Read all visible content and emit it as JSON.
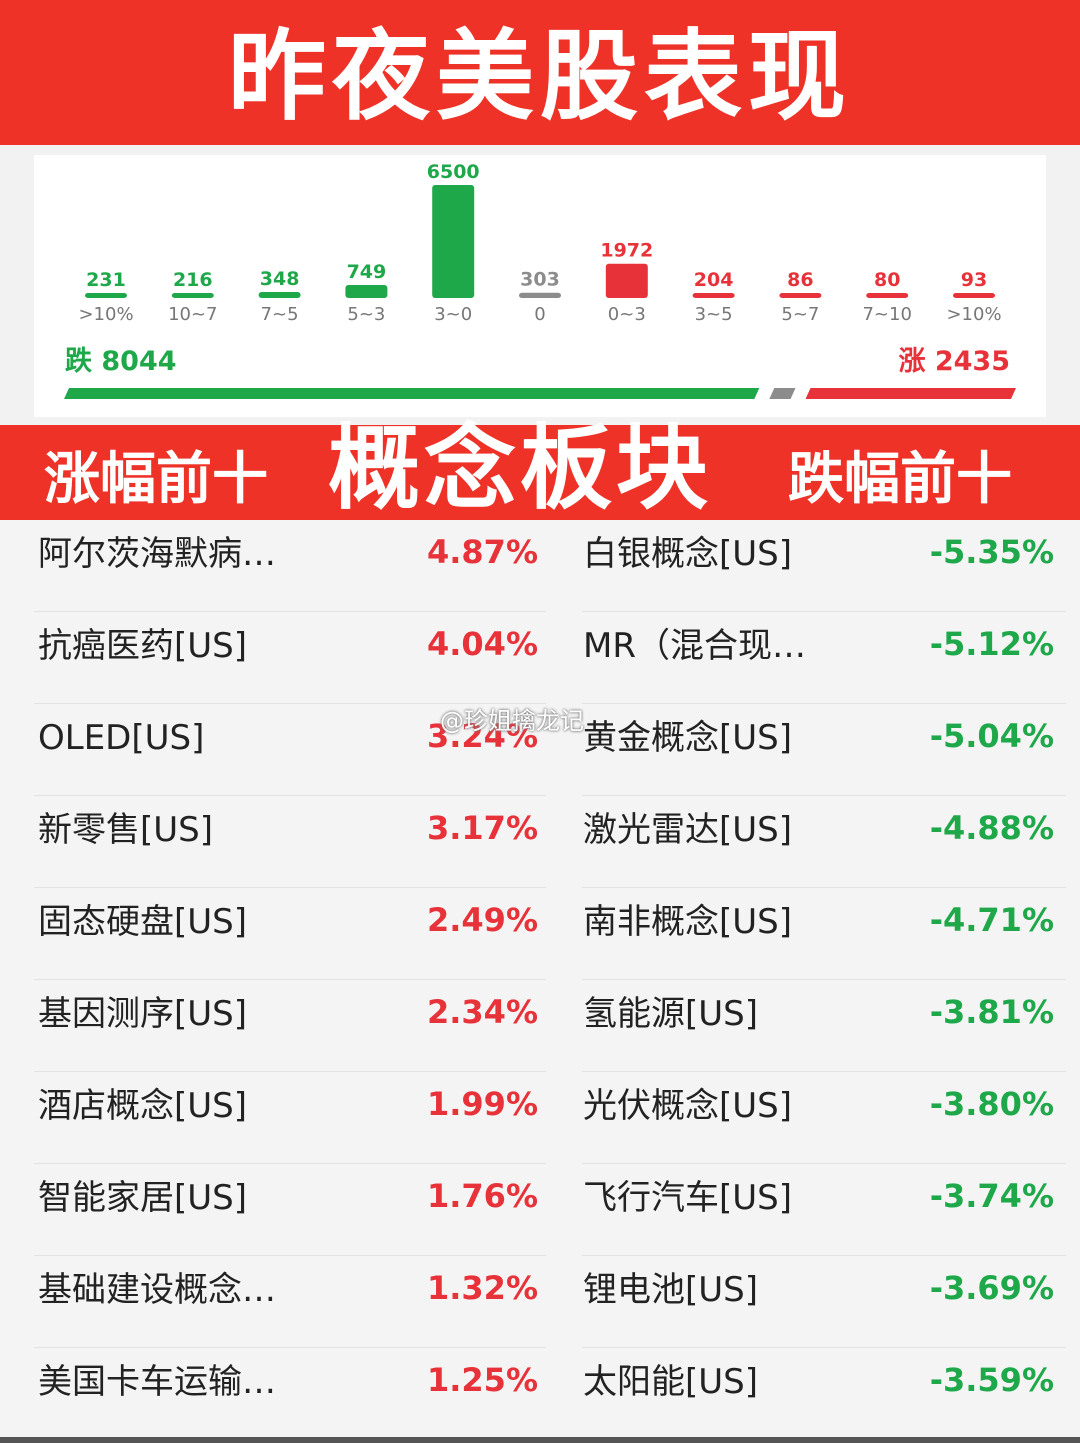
{
  "header": {
    "title": "昨夜美股表现"
  },
  "chart_data": {
    "type": "bar",
    "categories": [
      ">10%",
      "10~7",
      "7~5",
      "5~3",
      "3~0",
      "0",
      "0~3",
      "3~5",
      "5~7",
      "7~10",
      ">10%"
    ],
    "values": [
      231,
      216,
      348,
      749,
      6500,
      303,
      1972,
      204,
      86,
      80,
      93
    ],
    "value_labels": [
      "231",
      "216",
      "348",
      "749",
      "6500",
      "303",
      "1972",
      "204",
      "86",
      "80",
      "93"
    ],
    "bar_colors": [
      "#1ea84a",
      "#1ea84a",
      "#1ea84a",
      "#1ea84a",
      "#1ea84a",
      "#8c8c8c",
      "#e8323a",
      "#e8323a",
      "#e8323a",
      "#e8323a",
      "#e8323a"
    ],
    "title": "",
    "xlabel": "",
    "ylabel": "",
    "ylim": [
      0,
      6500
    ],
    "grid": false
  },
  "summary": {
    "fall_label": "跌 8044",
    "rise_label": "涨 2435",
    "fall_count": 8044,
    "flat_count": 303,
    "rise_count": 2435,
    "fall_color": "#1ea84a",
    "flat_color": "#8c8c8c",
    "rise_color": "#e8323a"
  },
  "band": {
    "left_title": "涨幅前十",
    "center_title": "概念板块",
    "right_title": "跌幅前十"
  },
  "rows": [
    {
      "left_name": "阿尔茨海默病…",
      "left_value": "4.87%",
      "right_name": "白银概念[US]",
      "right_value": "-5.35%"
    },
    {
      "left_name": "抗癌医药[US]",
      "left_value": "4.04%",
      "right_name": "MR（混合现…",
      "right_value": "-5.12%"
    },
    {
      "left_name": "OLED[US]",
      "left_value": "3.24%",
      "right_name": "黄金概念[US]",
      "right_value": "-5.04%"
    },
    {
      "left_name": "新零售[US]",
      "left_value": "3.17%",
      "right_name": "激光雷达[US]",
      "right_value": "-4.88%"
    },
    {
      "left_name": "固态硬盘[US]",
      "left_value": "2.49%",
      "right_name": "南非概念[US]",
      "right_value": "-4.71%"
    },
    {
      "left_name": "基因测序[US]",
      "left_value": "2.34%",
      "right_name": "氢能源[US]",
      "right_value": "-3.81%"
    },
    {
      "left_name": "酒店概念[US]",
      "left_value": "1.99%",
      "right_name": "光伏概念[US]",
      "right_value": "-3.80%"
    },
    {
      "left_name": "智能家居[US]",
      "left_value": "1.76%",
      "right_name": "飞行汽车[US]",
      "right_value": "-3.74%"
    },
    {
      "left_name": "基础建设概念…",
      "left_value": "1.32%",
      "right_name": "锂电池[US]",
      "right_value": "-3.69%"
    },
    {
      "left_name": "美国卡车运输…",
      "left_value": "1.25%",
      "right_name": "太阳能[US]",
      "right_value": "-3.59%"
    }
  ],
  "watermark": "@珍姐擒龙记"
}
